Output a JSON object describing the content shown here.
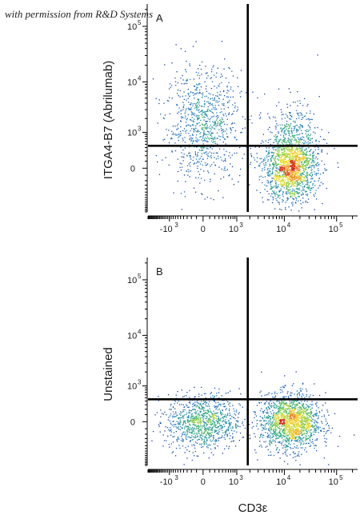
{
  "credit_text": "with permission from R&D Systems",
  "x_axis_label": "CD3ε",
  "chart_data": [
    {
      "type": "scatter",
      "panel": "A",
      "ylabel": "ITGA4-B7 (Abrilumab)",
      "xlabel": "CD3ε",
      "x_scale": "biexponential",
      "y_scale": "biexponential",
      "x_tick_labels": [
        "-10³",
        "0",
        "10³",
        "10⁴",
        "10⁵"
      ],
      "y_tick_labels": [
        "0",
        "10³",
        "10⁴",
        "10⁵"
      ],
      "x_ticks": [
        -1000,
        0,
        1000,
        10000,
        100000
      ],
      "y_ticks": [
        0,
        1000,
        10000,
        100000
      ],
      "quadrant_gate": {
        "x": 1800,
        "y": 450
      },
      "populations": [
        {
          "name": "CD3- ITGA4-B7+",
          "center": {
            "x": 0,
            "y": 1500
          },
          "spread_x_decades": 0.35,
          "spread_y_decades": 0.5,
          "n": 900
        },
        {
          "name": "CD3+ ITGA4-B7-",
          "center": {
            "x": 13000,
            "y": 0
          },
          "spread_x_decades": 0.25,
          "spread_y_decades": 0.3,
          "n": 1500
        },
        {
          "name": "CD3+ ITGA4-B7+ (sparse)",
          "center": {
            "x": 14000,
            "y": 700
          },
          "spread_x_decades": 0.25,
          "spread_y_decades": 0.35,
          "n": 350
        }
      ]
    },
    {
      "type": "scatter",
      "panel": "B",
      "ylabel": "Unstained",
      "xlabel": "CD3ε",
      "x_scale": "biexponential",
      "y_scale": "biexponential",
      "x_tick_labels": [
        "-10³",
        "0",
        "10³",
        "10⁴",
        "10⁵"
      ],
      "y_tick_labels": [
        "0",
        "10³",
        "10⁴",
        "10⁵"
      ],
      "x_ticks": [
        -1000,
        0,
        1000,
        10000,
        100000
      ],
      "y_ticks": [
        0,
        1000,
        10000,
        100000
      ],
      "quadrant_gate": {
        "x": 1800,
        "y": 450
      },
      "populations": [
        {
          "name": "CD3- unstained",
          "center": {
            "x": 0,
            "y": 0
          },
          "spread_x_decades": 0.35,
          "spread_y_decades": 0.25,
          "n": 1000
        },
        {
          "name": "CD3+ unstained",
          "center": {
            "x": 13000,
            "y": 0
          },
          "spread_x_decades": 0.28,
          "spread_y_decades": 0.25,
          "n": 1600
        }
      ]
    }
  ]
}
